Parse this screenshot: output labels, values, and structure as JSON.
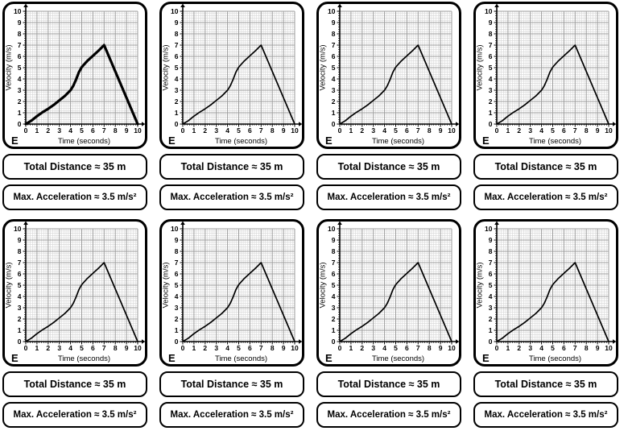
{
  "style": {
    "background": "#ffffff",
    "ink": "#000000",
    "grid_major": "#9c9c9c",
    "grid_minor": "#d6d6d6"
  },
  "chart_data": {
    "type": "line",
    "title": "",
    "xlabel": "Time (seconds)",
    "ylabel": "Velocity (m/s)",
    "xlim": [
      0,
      10
    ],
    "ylim": [
      0,
      10
    ],
    "xticks": [
      0,
      1,
      2,
      3,
      4,
      5,
      6,
      7,
      8,
      9,
      10
    ],
    "yticks": [
      0,
      1,
      2,
      3,
      4,
      5,
      6,
      7,
      8,
      9,
      10
    ],
    "grid": true,
    "minor_grid_step": 0.2,
    "legend": false,
    "series": [
      {
        "name": "velocity",
        "x": [
          0,
          0.5,
          1,
          1.5,
          2,
          2.5,
          3,
          3.5,
          4,
          4.25,
          4.5,
          4.75,
          5,
          5.5,
          6,
          6.5,
          7,
          10
        ],
        "y": [
          0,
          0.3,
          0.7,
          1.05,
          1.35,
          1.7,
          2.1,
          2.5,
          3,
          3.4,
          3.95,
          4.6,
          5.05,
          5.6,
          6.05,
          6.5,
          7,
          0
        ]
      }
    ]
  },
  "panels": [
    {
      "letter": "E",
      "distance": "Total Distance ≈ 35 m",
      "acceleration": "Max. Acceleration ≈ 3.5 m/s²",
      "emphasis": true
    },
    {
      "letter": "E",
      "distance": "Total Distance ≈ 35 m",
      "acceleration": "Max. Acceleration ≈ 3.5 m/s²",
      "emphasis": false
    },
    {
      "letter": "E",
      "distance": "Total Distance ≈ 35 m",
      "acceleration": "Max. Acceleration ≈ 3.5 m/s²",
      "emphasis": false
    },
    {
      "letter": "E",
      "distance": "Total Distance ≈ 35 m",
      "acceleration": "Max. Acceleration ≈ 3.5 m/s²",
      "emphasis": false
    },
    {
      "letter": "E",
      "distance": "Total Distance ≈ 35 m",
      "acceleration": "Max. Acceleration ≈ 3.5 m/s²",
      "emphasis": false
    },
    {
      "letter": "E",
      "distance": "Total Distance ≈ 35 m",
      "acceleration": "Max. Acceleration ≈ 3.5 m/s²",
      "emphasis": false
    },
    {
      "letter": "E",
      "distance": "Total Distance ≈ 35 m",
      "acceleration": "Max. Acceleration ≈ 3.5 m/s²",
      "emphasis": false
    },
    {
      "letter": "E",
      "distance": "Total Distance ≈ 35 m",
      "acceleration": "Max. Acceleration ≈ 3.5 m/s²",
      "emphasis": false
    }
  ]
}
